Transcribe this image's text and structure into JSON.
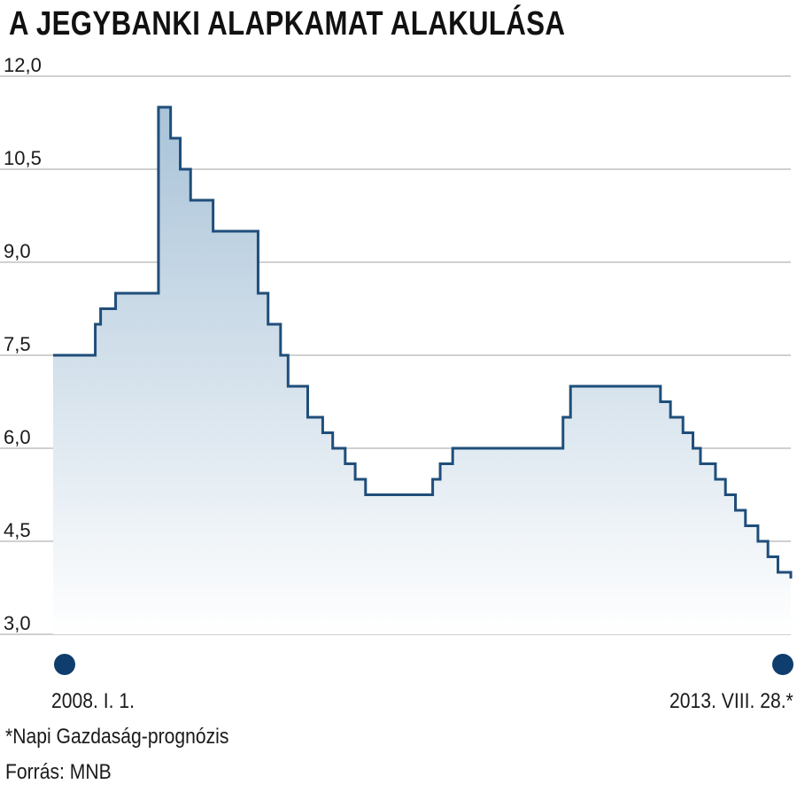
{
  "title": "A JEGYBANKI ALAPKAMAT ALAKULÁSA",
  "footnote": "*Napi Gazdaság-prognózis",
  "source": "Forrás: MNB",
  "colors": {
    "line": "#1f4e7a",
    "fill_top": "#a9c3d8",
    "fill_bottom": "#ffffff",
    "grid": "#b5b5b5",
    "marker": "#0f3d6e"
  },
  "chart_data": {
    "type": "area",
    "step": true,
    "title": "A JEGYBANKI ALAPKAMAT ALAKULÁSA",
    "xlabel": "",
    "ylabel": "",
    "ylim": [
      3.0,
      12.0
    ],
    "yticks": [
      "12,0",
      "10,5",
      "9,0",
      "7,5",
      "6,0",
      "4,5",
      "3,0"
    ],
    "ytick_values": [
      12.0,
      10.5,
      9.0,
      7.5,
      6.0,
      4.5,
      3.0
    ],
    "grid": true,
    "x_start_label": "2008. I. 1.",
    "x_end_label": "2013. VIII. 28.*",
    "xlim": [
      "2008-01-01",
      "2013-08-28"
    ],
    "series": [
      {
        "points": [
          [
            "2008-01-01",
            7.5
          ],
          [
            "2008-04-28",
            8.0
          ],
          [
            "2008-05-13",
            8.25
          ],
          [
            "2008-06-24",
            8.5
          ],
          [
            "2008-10-22",
            11.5
          ],
          [
            "2008-11-25",
            11.0
          ],
          [
            "2008-12-22",
            10.5
          ],
          [
            "2009-01-20",
            10.0
          ],
          [
            "2009-03-24",
            9.5
          ],
          [
            "2009-07-28",
            8.5
          ],
          [
            "2009-08-25",
            8.0
          ],
          [
            "2009-09-29",
            7.5
          ],
          [
            "2009-10-20",
            7.0
          ],
          [
            "2009-12-14",
            6.5
          ],
          [
            "2010-01-25",
            6.25
          ],
          [
            "2010-02-22",
            6.0
          ],
          [
            "2010-03-29",
            5.75
          ],
          [
            "2010-04-26",
            5.5
          ],
          [
            "2010-05-25",
            5.25
          ],
          [
            "2010-11-29",
            5.5
          ],
          [
            "2010-12-20",
            5.75
          ],
          [
            "2011-01-24",
            6.0
          ],
          [
            "2011-11-29",
            6.5
          ],
          [
            "2011-12-20",
            7.0
          ],
          [
            "2012-08-28",
            6.75
          ],
          [
            "2012-09-25",
            6.5
          ],
          [
            "2012-10-30",
            6.25
          ],
          [
            "2012-11-27",
            6.0
          ],
          [
            "2012-12-18",
            5.75
          ],
          [
            "2013-01-29",
            5.5
          ],
          [
            "2013-02-26",
            5.25
          ],
          [
            "2013-03-26",
            5.0
          ],
          [
            "2013-04-23",
            4.75
          ],
          [
            "2013-05-28",
            4.5
          ],
          [
            "2013-06-25",
            4.25
          ],
          [
            "2013-07-23",
            4.0
          ],
          [
            "2013-08-28",
            3.9
          ]
        ]
      }
    ]
  }
}
